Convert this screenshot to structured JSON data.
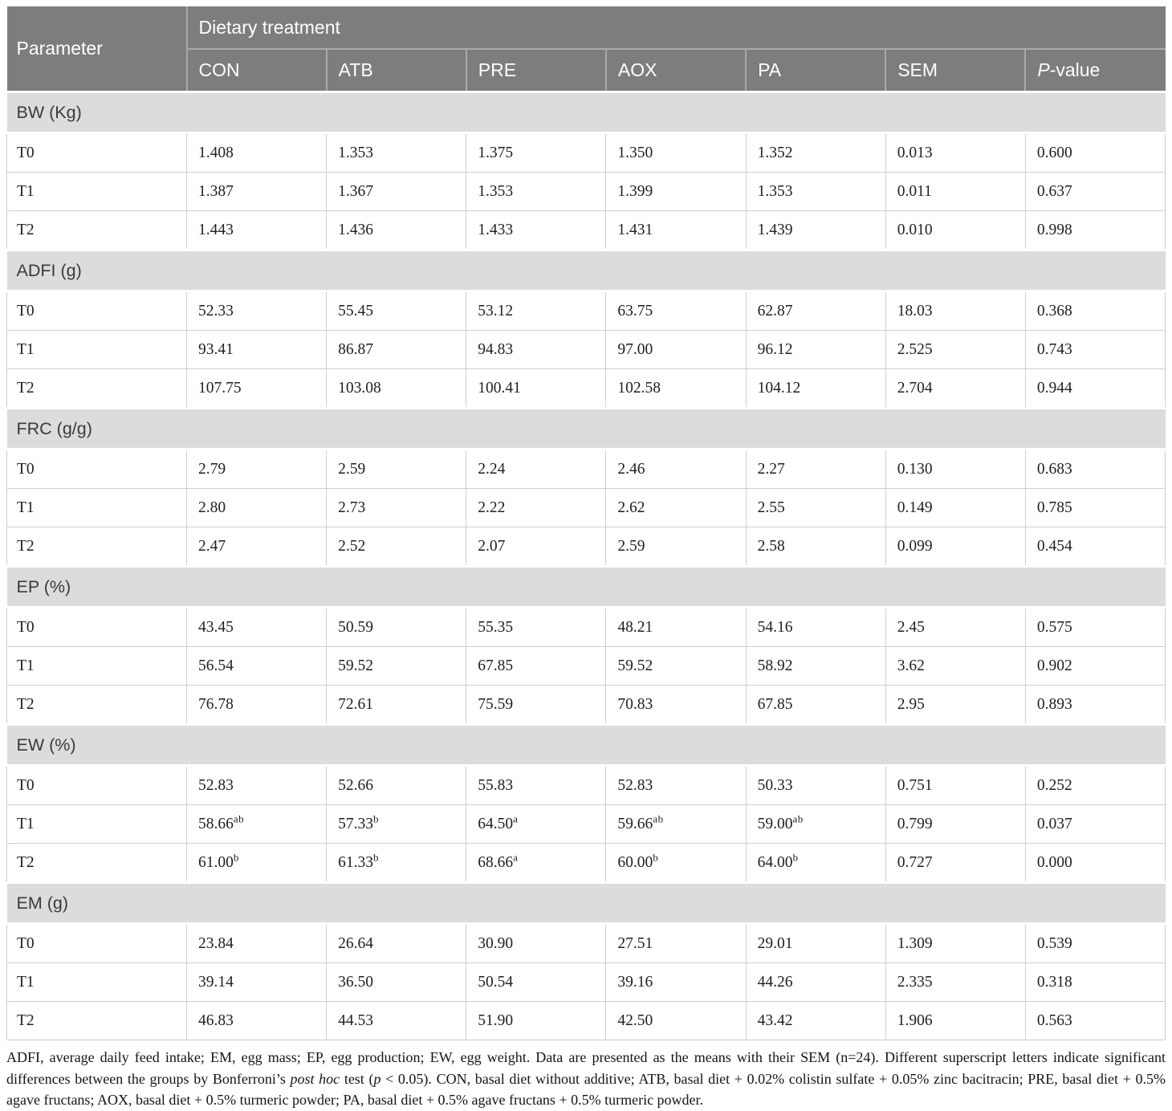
{
  "colors": {
    "header_bg": "#7d7d7d",
    "header_divider": "#a9a9a9",
    "band_bg": "#dcdcdc",
    "row_border": "#cfcfcf",
    "header_text": "#ffffff",
    "band_text": "#3a3a3a",
    "body_text": "#1f1f1f"
  },
  "table": {
    "header": {
      "parameter_label": "Parameter",
      "group_label": "Dietary treatment",
      "columns": [
        "CON",
        "ATB",
        "PRE",
        "AOX",
        "PA",
        "SEM"
      ],
      "pvalue": {
        "italic": "P",
        "rest": "-value"
      }
    },
    "sections": [
      {
        "title": "BW (Kg)",
        "rows": [
          {
            "label": "T0",
            "values": [
              "1.408",
              "1.353",
              "1.375",
              "1.350",
              "1.352",
              "0.013",
              "0.600"
            ]
          },
          {
            "label": "T1",
            "values": [
              "1.387",
              "1.367",
              "1.353",
              "1.399",
              "1.353",
              "0.011",
              "0.637"
            ]
          },
          {
            "label": "T2",
            "values": [
              "1.443",
              "1.436",
              "1.433",
              "1.431",
              "1.439",
              "0.010",
              "0.998"
            ]
          }
        ]
      },
      {
        "title": "ADFI (g)",
        "rows": [
          {
            "label": "T0",
            "values": [
              "52.33",
              "55.45",
              "53.12",
              "63.75",
              "62.87",
              "18.03",
              "0.368"
            ]
          },
          {
            "label": "T1",
            "values": [
              "93.41",
              "86.87",
              "94.83",
              "97.00",
              "96.12",
              "2.525",
              "0.743"
            ]
          },
          {
            "label": "T2",
            "values": [
              "107.75",
              "103.08",
              "100.41",
              "102.58",
              "104.12",
              "2.704",
              "0.944"
            ]
          }
        ]
      },
      {
        "title": "FRC (g/g)",
        "rows": [
          {
            "label": "T0",
            "values": [
              "2.79",
              "2.59",
              "2.24",
              "2.46",
              "2.27",
              "0.130",
              "0.683"
            ]
          },
          {
            "label": "T1",
            "values": [
              "2.80",
              "2.73",
              "2.22",
              "2.62",
              "2.55",
              "0.149",
              "0.785"
            ]
          },
          {
            "label": "T2",
            "values": [
              "2.47",
              "2.52",
              "2.07",
              "2.59",
              "2.58",
              "0.099",
              "0.454"
            ]
          }
        ]
      },
      {
        "title": "EP (%)",
        "rows": [
          {
            "label": "T0",
            "values": [
              "43.45",
              "50.59",
              "55.35",
              "48.21",
              "54.16",
              "2.45",
              "0.575"
            ]
          },
          {
            "label": "T1",
            "values": [
              "56.54",
              "59.52",
              "67.85",
              "59.52",
              "58.92",
              "3.62",
              "0.902"
            ]
          },
          {
            "label": "T2",
            "values": [
              "76.78",
              "72.61",
              "75.59",
              "70.83",
              "67.85",
              "2.95",
              "0.893"
            ]
          }
        ]
      },
      {
        "title": "EW (%)",
        "rows": [
          {
            "label": "T0",
            "values": [
              "52.83",
              "52.66",
              "55.83",
              "52.83",
              "50.33",
              "0.751",
              "0.252"
            ]
          },
          {
            "label": "T1",
            "values": [
              {
                "v": "58.66",
                "sup": "ab"
              },
              {
                "v": "57.33",
                "sup": "b"
              },
              {
                "v": "64.50",
                "sup": "a"
              },
              {
                "v": "59.66",
                "sup": "ab"
              },
              {
                "v": "59.00",
                "sup": "ab"
              },
              "0.799",
              "0.037"
            ]
          },
          {
            "label": "T2",
            "values": [
              {
                "v": "61.00",
                "sup": "b"
              },
              {
                "v": "61.33",
                "sup": "b"
              },
              {
                "v": "68.66",
                "sup": "a"
              },
              {
                "v": "60.00",
                "sup": "b"
              },
              {
                "v": "64.00",
                "sup": "b"
              },
              "0.727",
              "0.000"
            ]
          }
        ]
      },
      {
        "title": "EM (g)",
        "rows": [
          {
            "label": "T0",
            "values": [
              "23.84",
              "26.64",
              "30.90",
              "27.51",
              "29.01",
              "1.309",
              "0.539"
            ]
          },
          {
            "label": "T1",
            "values": [
              "39.14",
              "36.50",
              "50.54",
              "39.16",
              "44.26",
              "2.335",
              "0.318"
            ]
          },
          {
            "label": "T2",
            "values": [
              "46.83",
              "44.53",
              "51.90",
              "42.50",
              "43.42",
              "1.906",
              "0.563"
            ]
          }
        ]
      }
    ]
  },
  "footnote": {
    "parts": [
      {
        "text": "ADFI, average daily feed intake; EM, egg mass; EP, egg production; EW, egg weight. Data are presented as the means with their SEM (n=24). Different superscript letters indicate significant differences between the groups by Bonferroni’s ",
        "italic": false
      },
      {
        "text": "post hoc",
        "italic": true
      },
      {
        "text": " test (",
        "italic": false
      },
      {
        "text": "p",
        "italic": true
      },
      {
        "text": " < 0.05). CON, basal diet without additive; ATB, basal diet + 0.02% colistin sulfate + 0.05% zinc bacitracin; PRE, basal diet + 0.5% agave fructans; AOX, basal diet + 0.5% turmeric powder; PA, basal diet + 0.5% agave fructans + 0.5% turmeric powder.",
        "italic": false
      }
    ]
  }
}
